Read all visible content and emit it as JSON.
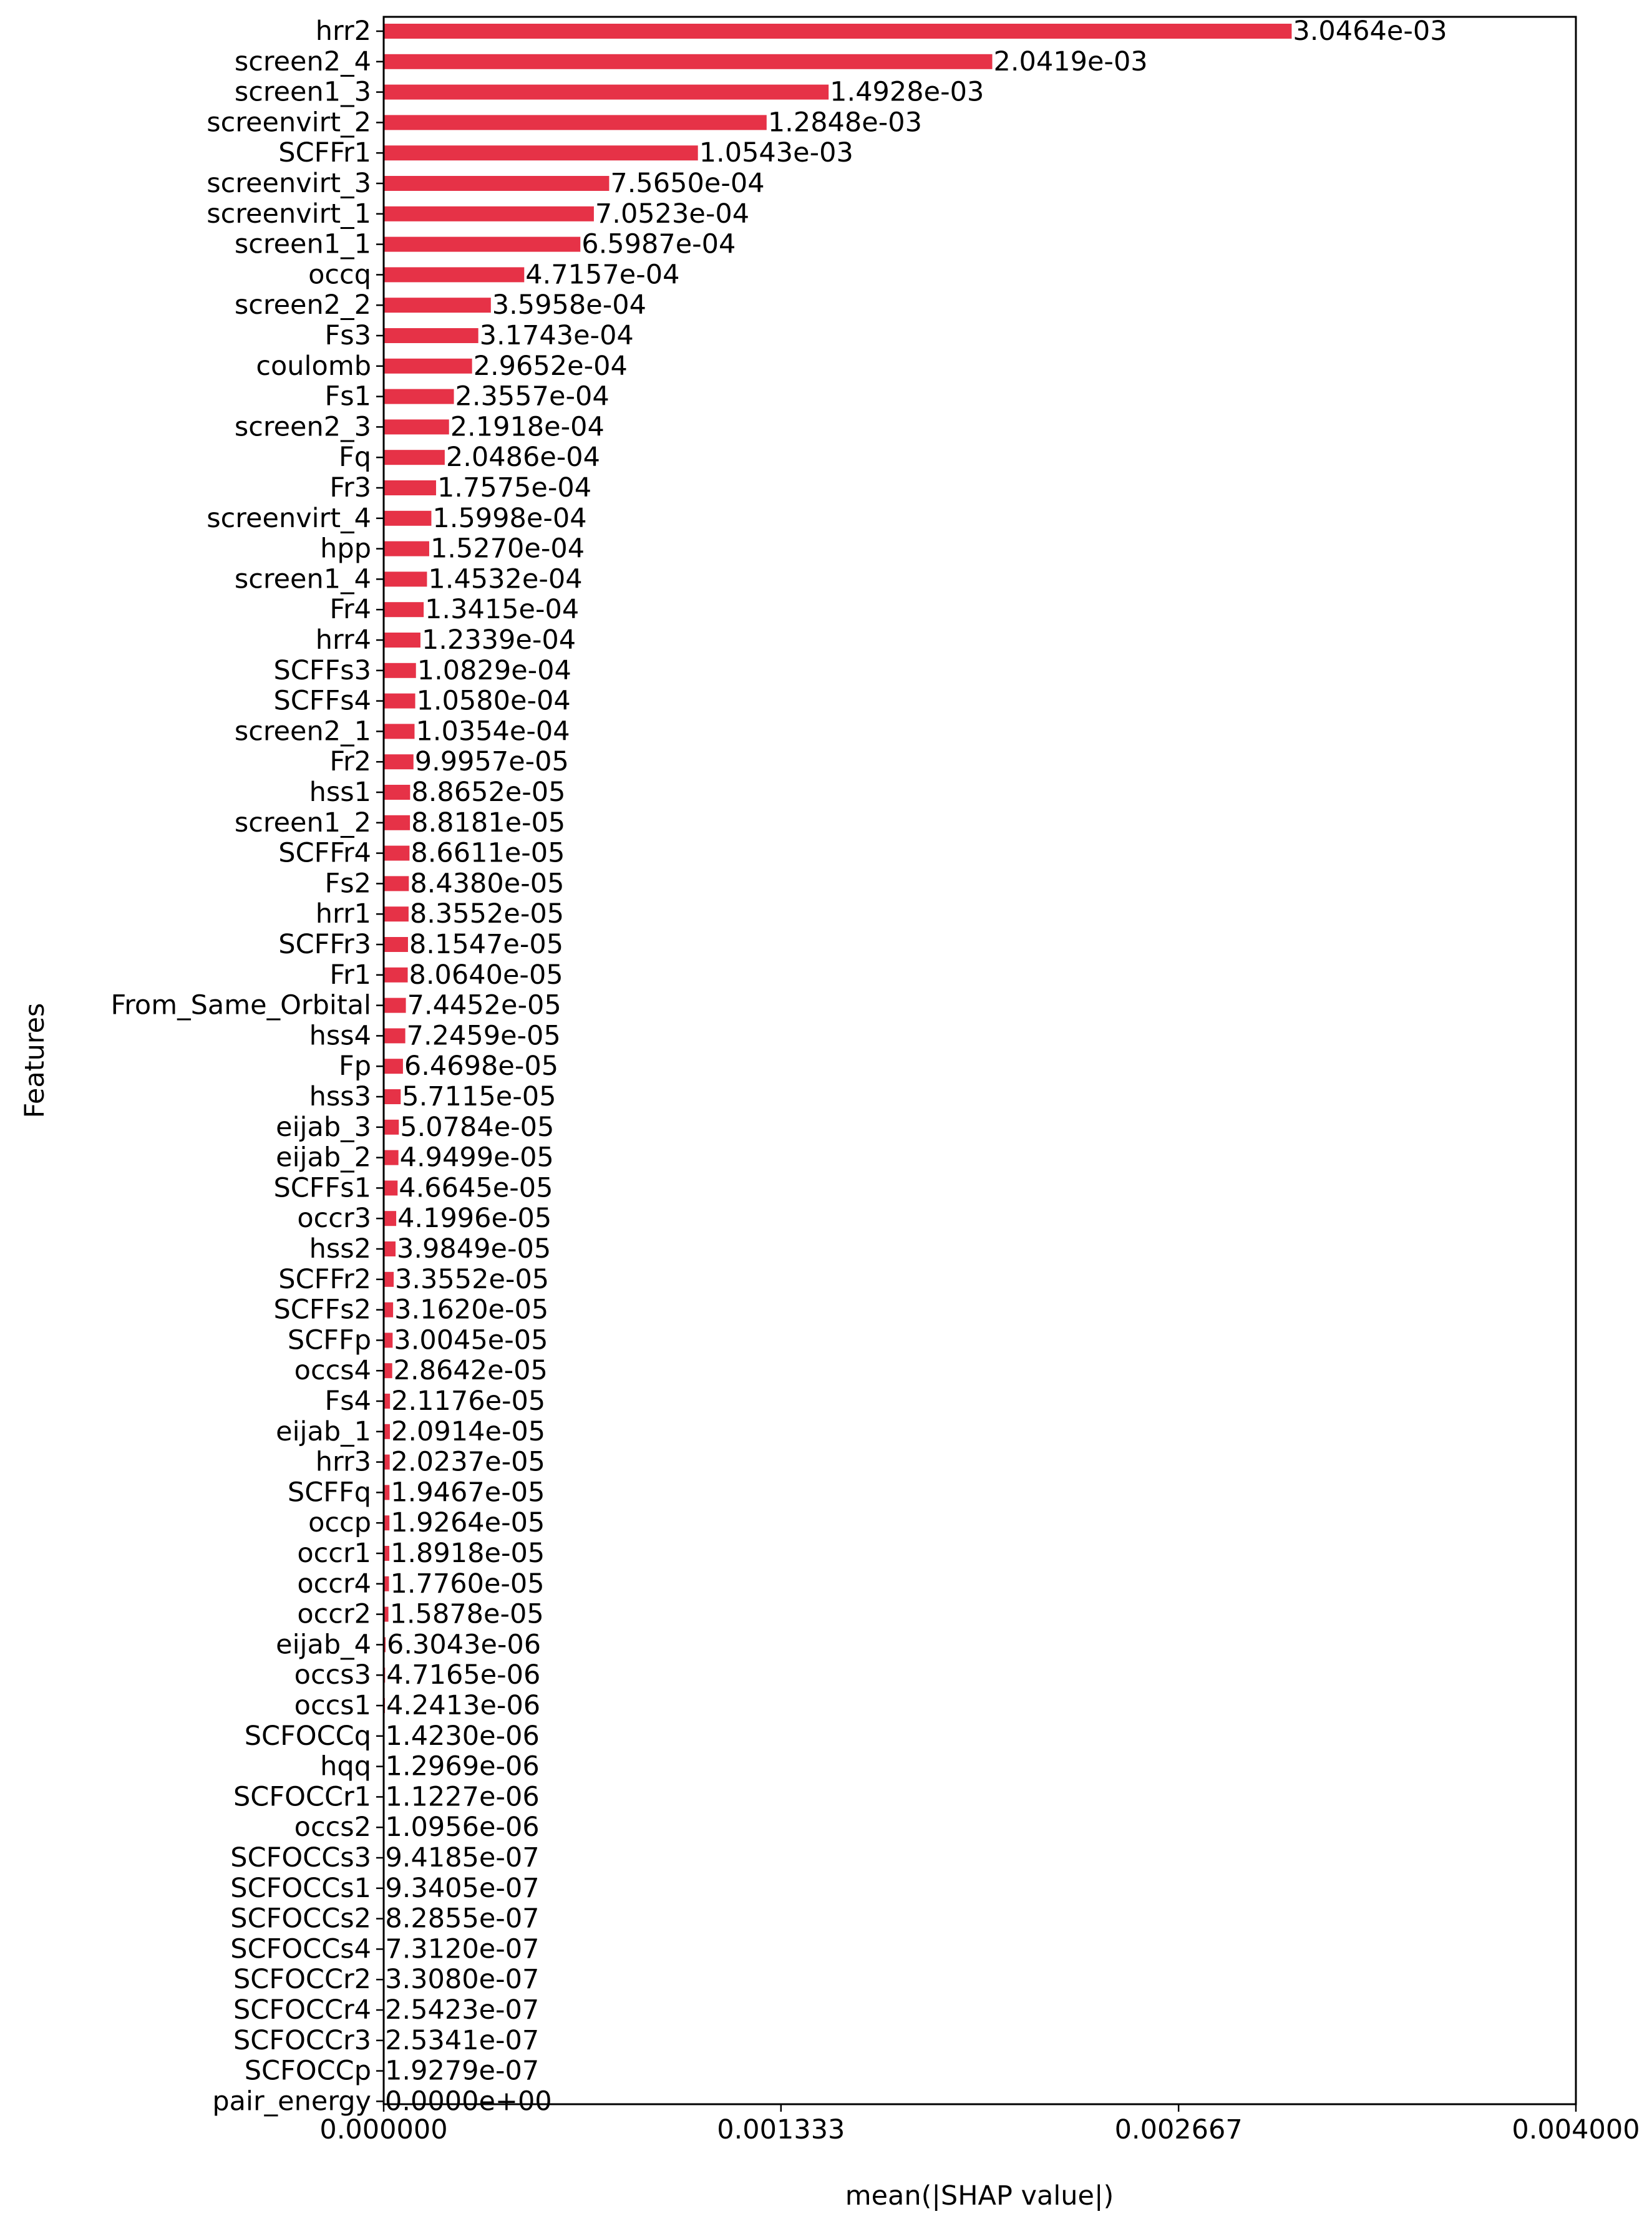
{
  "colors": {
    "bar": "#e63247",
    "axis": "#000000",
    "background": "#ffffff"
  },
  "chart_data": {
    "type": "bar",
    "orientation": "horizontal",
    "xlabel": "mean(|SHAP value|)",
    "ylabel": "Features",
    "xlim": [
      0,
      0.004
    ],
    "xticks": [
      0,
      0.001333,
      0.002667,
      0.004
    ],
    "xtick_labels": [
      "0.000000",
      "0.001333",
      "0.002667",
      "0.004000"
    ],
    "grid": false,
    "categories": [
      "hrr2",
      "screen2_4",
      "screen1_3",
      "screenvirt_2",
      "SCFFr1",
      "screenvirt_3",
      "screenvirt_1",
      "screen1_1",
      "occq",
      "screen2_2",
      "Fs3",
      "coulomb",
      "Fs1",
      "screen2_3",
      "Fq",
      "Fr3",
      "screenvirt_4",
      "hpp",
      "screen1_4",
      "Fr4",
      "hrr4",
      "SCFFs3",
      "SCFFs4",
      "screen2_1",
      "Fr2",
      "hss1",
      "screen1_2",
      "SCFFr4",
      "Fs2",
      "hrr1",
      "SCFFr3",
      "Fr1",
      "From_Same_Orbital",
      "hss4",
      "Fp",
      "hss3",
      "eijab_3",
      "eijab_2",
      "SCFFs1",
      "occr3",
      "hss2",
      "SCFFr2",
      "SCFFs2",
      "SCFFp",
      "occs4",
      "Fs4",
      "eijab_1",
      "hrr3",
      "SCFFq",
      "occp",
      "occr1",
      "occr4",
      "occr2",
      "eijab_4",
      "occs3",
      "occs1",
      "SCFOCCq",
      "hqq",
      "SCFOCCr1",
      "occs2",
      "SCFOCCs3",
      "SCFOCCs1",
      "SCFOCCs2",
      "SCFOCCs4",
      "SCFOCCr2",
      "SCFOCCr4",
      "SCFOCCr3",
      "SCFOCCp",
      "pair_energy"
    ],
    "values": [
      0.0030464,
      0.0020419,
      0.0014928,
      0.0012848,
      0.0010543,
      0.0007565,
      0.00070523,
      0.00065987,
      0.00047157,
      0.00035958,
      0.00031743,
      0.00029652,
      0.00023557,
      0.00021918,
      0.00020486,
      0.00017575,
      0.00015998,
      0.0001527,
      0.00014532,
      0.00013415,
      0.00012339,
      0.00010829,
      0.0001058,
      0.00010354,
      9.9957e-05,
      8.8652e-05,
      8.8181e-05,
      8.6611e-05,
      8.438e-05,
      8.3552e-05,
      8.1547e-05,
      8.064e-05,
      7.4452e-05,
      7.2459e-05,
      6.4698e-05,
      5.7115e-05,
      5.0784e-05,
      4.9499e-05,
      4.6645e-05,
      4.1996e-05,
      3.9849e-05,
      3.3552e-05,
      3.162e-05,
      3.0045e-05,
      2.8642e-05,
      2.1176e-05,
      2.0914e-05,
      2.0237e-05,
      1.9467e-05,
      1.9264e-05,
      1.8918e-05,
      1.776e-05,
      1.5878e-05,
      6.3043e-06,
      4.7165e-06,
      4.2413e-06,
      1.423e-06,
      1.2969e-06,
      1.1227e-06,
      1.0956e-06,
      9.4185e-07,
      9.3405e-07,
      8.2855e-07,
      7.312e-07,
      3.308e-07,
      2.5423e-07,
      2.5341e-07,
      1.9279e-07,
      0.0
    ],
    "value_labels": [
      "3.0464e-03",
      "2.0419e-03",
      "1.4928e-03",
      "1.2848e-03",
      "1.0543e-03",
      "7.5650e-04",
      "7.0523e-04",
      "6.5987e-04",
      "4.7157e-04",
      "3.5958e-04",
      "3.1743e-04",
      "2.9652e-04",
      "2.3557e-04",
      "2.1918e-04",
      "2.0486e-04",
      "1.7575e-04",
      "1.5998e-04",
      "1.5270e-04",
      "1.4532e-04",
      "1.3415e-04",
      "1.2339e-04",
      "1.0829e-04",
      "1.0580e-04",
      "1.0354e-04",
      "9.9957e-05",
      "8.8652e-05",
      "8.8181e-05",
      "8.6611e-05",
      "8.4380e-05",
      "8.3552e-05",
      "8.1547e-05",
      "8.0640e-05",
      "7.4452e-05",
      "7.2459e-05",
      "6.4698e-05",
      "5.7115e-05",
      "5.0784e-05",
      "4.9499e-05",
      "4.6645e-05",
      "4.1996e-05",
      "3.9849e-05",
      "3.3552e-05",
      "3.1620e-05",
      "3.0045e-05",
      "2.8642e-05",
      "2.1176e-05",
      "2.0914e-05",
      "2.0237e-05",
      "1.9467e-05",
      "1.9264e-05",
      "1.8918e-05",
      "1.7760e-05",
      "1.5878e-05",
      "6.3043e-06",
      "4.7165e-06",
      "4.2413e-06",
      "1.4230e-06",
      "1.2969e-06",
      "1.1227e-06",
      "1.0956e-06",
      "9.4185e-07",
      "9.3405e-07",
      "8.2855e-07",
      "7.3120e-07",
      "3.3080e-07",
      "2.5423e-07",
      "2.5341e-07",
      "1.9279e-07",
      "0.0000e+00"
    ]
  }
}
